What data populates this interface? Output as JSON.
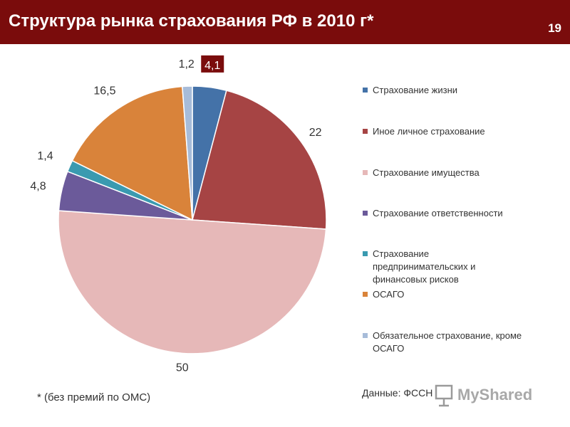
{
  "header": {
    "title": "Структура рынка страхования РФ в 2010 г*",
    "page_number": "19"
  },
  "colors": {
    "header_bg": "#7a0c0c",
    "highlight_label_bg": "#7a0c0c"
  },
  "chart_data": {
    "type": "pie",
    "title": "",
    "series": [
      {
        "name": "",
        "categories": [
          "Страхование жизни",
          "Иное личное страхование",
          "Страхование имущества",
          "Страхование ответственности",
          "Страхование предпринимательских и финансовых рисков",
          "ОСАГО",
          "Обязательное страхование, кроме ОСАГО"
        ],
        "values": [
          4.1,
          22,
          50,
          4.8,
          1.4,
          16.5,
          1.2
        ],
        "value_labels": [
          "4,1",
          "22",
          "50",
          "4,8",
          "1,4",
          "16,5",
          "1,2"
        ],
        "colors": [
          "#4472a8",
          "#a64444",
          "#e6b8b8",
          "#6b5a9a",
          "#3a9ab0",
          "#d9833a",
          "#a7bcd9"
        ]
      }
    ],
    "legend_position": "right",
    "start_angle": "12 o'clock, clockwise"
  },
  "legend": [
    {
      "label": "Страхование жизни"
    },
    {
      "label": "Иное личное страхование"
    },
    {
      "label": "Страхование имущества"
    },
    {
      "label": "Страхование ответственности"
    },
    {
      "label": "Страхование предпринимательских и финансовых рисков"
    },
    {
      "label": "ОСАГО"
    },
    {
      "label": "Обязательное страхование, кроме ОСАГО"
    }
  ],
  "footnote": "* (без премий по ОМС)",
  "source": "Данные: ФССН",
  "watermark": "MyShared"
}
